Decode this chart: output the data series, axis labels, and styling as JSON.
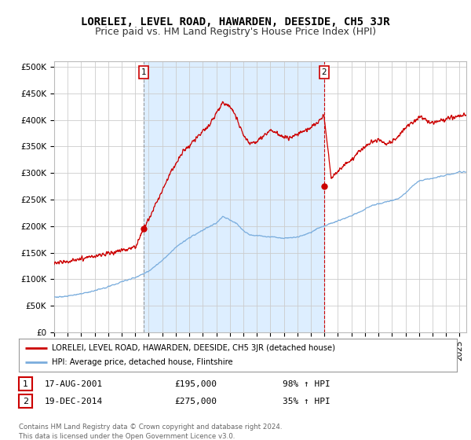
{
  "title": "LORELEI, LEVEL ROAD, HAWARDEN, DEESIDE, CH5 3JR",
  "subtitle": "Price paid vs. HM Land Registry's House Price Index (HPI)",
  "ylabel_ticks": [
    "£0",
    "£50K",
    "£100K",
    "£150K",
    "£200K",
    "£250K",
    "£300K",
    "£350K",
    "£400K",
    "£450K",
    "£500K"
  ],
  "ytick_values": [
    0,
    50000,
    100000,
    150000,
    200000,
    250000,
    300000,
    350000,
    400000,
    450000,
    500000
  ],
  "ylim": [
    0,
    510000
  ],
  "xlim_start": 1995.0,
  "xlim_end": 2025.5,
  "sale1_x": 2001.63,
  "sale1_y": 195000,
  "sale1_label": "1",
  "sale2_x": 2014.97,
  "sale2_y": 275000,
  "sale2_label": "2",
  "red_line_color": "#cc0000",
  "blue_line_color": "#7aaddd",
  "shade_color": "#ddeeff",
  "grid_color": "#cccccc",
  "background_color": "#ffffff",
  "legend_text_red": "LORELEI, LEVEL ROAD, HAWARDEN, DEESIDE, CH5 3JR (detached house)",
  "legend_text_blue": "HPI: Average price, detached house, Flintshire",
  "table_row1": [
    "1",
    "17-AUG-2001",
    "£195,000",
    "98% ↑ HPI"
  ],
  "table_row2": [
    "2",
    "19-DEC-2014",
    "£275,000",
    "35% ↑ HPI"
  ],
  "footer": "Contains HM Land Registry data © Crown copyright and database right 2024.\nThis data is licensed under the Open Government Licence v3.0.",
  "title_fontsize": 10,
  "subtitle_fontsize": 9,
  "tick_fontsize": 7.5
}
